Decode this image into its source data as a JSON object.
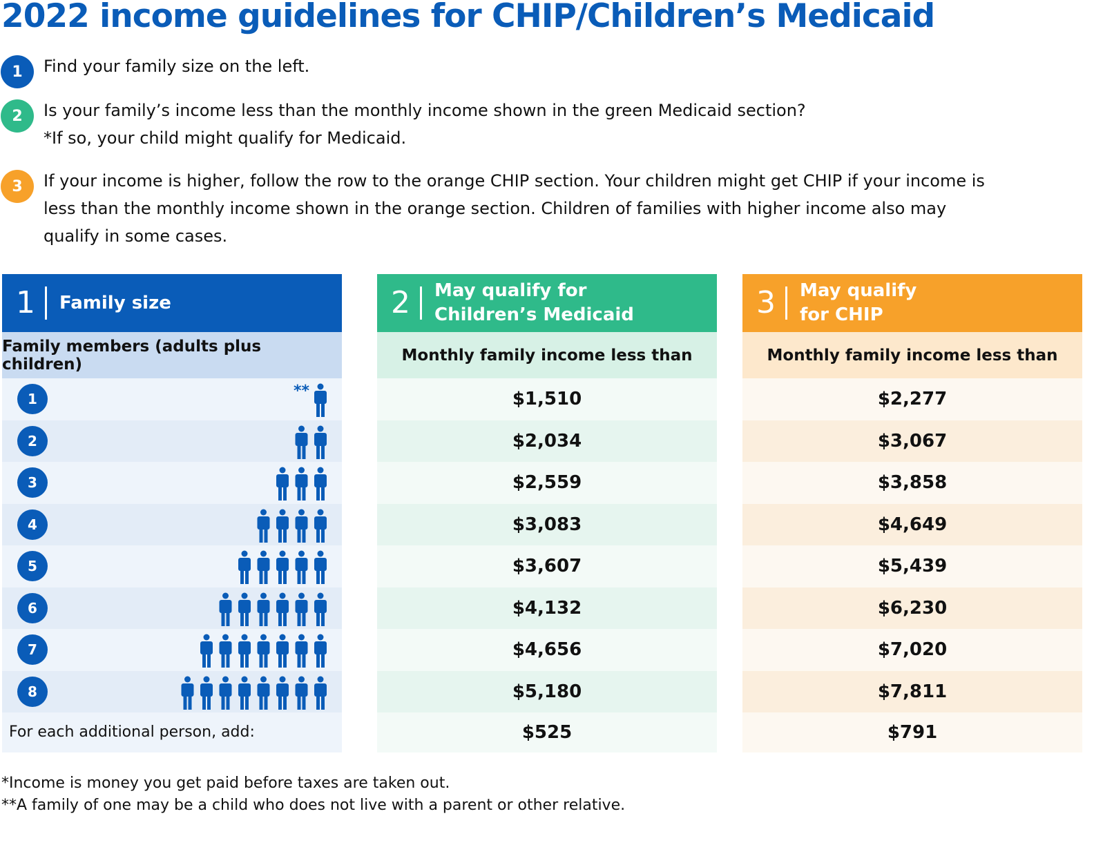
{
  "title": "2022 income guidelines for CHIP/Children’s Medicaid",
  "steps": [
    {
      "number": "1",
      "color": "#0a5cb8",
      "lines": [
        "Find your family size on the left."
      ]
    },
    {
      "number": "2",
      "color": "#2fba8a",
      "lines": [
        "Is your family’s income less than the monthly income shown in the green Medicaid section?",
        "*If so, your child might qualify for Medicaid."
      ]
    },
    {
      "number": "3",
      "color": "#f7a12a",
      "lines": [
        "If your income is higher, follow the row to the orange CHIP section. Your children might get CHIP if your income is less than the monthly income shown in the orange section. Children of families with higher income also may qualify in some cases."
      ]
    }
  ],
  "columns": [
    {
      "number": "1",
      "title": [
        "Family size"
      ],
      "subheader": "Family members (adults plus children)"
    },
    {
      "number": "2",
      "title": [
        "May qualify for",
        "Children’s Medicaid"
      ],
      "subheader": "Monthly family income less than"
    },
    {
      "number": "3",
      "title": [
        "May qualify",
        "for CHIP"
      ],
      "subheader": "Monthly family income less than"
    }
  ],
  "family_sizes": [
    1,
    2,
    3,
    4,
    5,
    6,
    7,
    8
  ],
  "family_one_note": "**",
  "medicaid": [
    "$1,510",
    "$2,034",
    "$2,559",
    "$3,083",
    "$3,607",
    "$4,132",
    "$4,656",
    "$5,180"
  ],
  "chip": [
    "$2,277",
    "$3,067",
    "$3,858",
    "$4,649",
    "$5,439",
    "$6,230",
    "$7,020",
    "$7,811"
  ],
  "additional": {
    "label": "For each additional person, add:",
    "medicaid": "$525",
    "chip": "$791"
  },
  "footnotes": [
    "*Income is money you get paid before taxes are taken out.",
    "**A family of one may be a child who does not live with a parent or other relative."
  ]
}
